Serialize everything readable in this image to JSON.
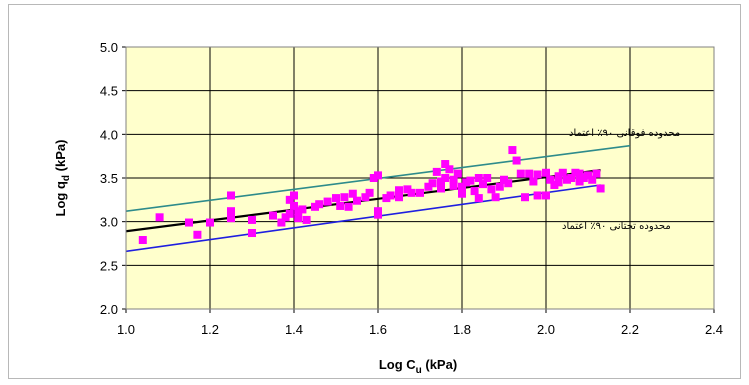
{
  "colors": {
    "plot_background": "#ffffcc",
    "grid": "#000000",
    "points": "#ff00ff",
    "mean_line": "#000000",
    "upper_line": "#2e8b8b",
    "lower_line": "#1f1fe0"
  },
  "chart_data": {
    "type": "scatter",
    "xlabel_main": "Log C",
    "xlabel_sub": "u",
    "xlabel_unit": " (kPa)",
    "ylabel_main": "Log q",
    "ylabel_sub": "d",
    "ylabel_unit": " (kPa)",
    "xlim": [
      1.0,
      2.4
    ],
    "ylim": [
      2.0,
      5.0
    ],
    "x_ticks": [
      "1.0",
      "1.2",
      "1.4",
      "1.6",
      "1.8",
      "2.0",
      "2.2",
      "2.4"
    ],
    "y_ticks": [
      "2.0",
      "2.5",
      "3.0",
      "3.5",
      "4.0",
      "4.5",
      "5.0"
    ],
    "grid": true,
    "annotations": {
      "upper": "محدوده فوقانی ۹۰٪ اعتماد",
      "lower": "محدوده تحتانی ۹۰٪ اعتماد"
    },
    "lines": [
      {
        "role": "upper",
        "x": [
          1.0,
          2.2
        ],
        "y": [
          3.12,
          3.87
        ]
      },
      {
        "role": "mean",
        "x": [
          1.0,
          2.13
        ],
        "y": [
          2.89,
          3.59
        ]
      },
      {
        "role": "lower",
        "x": [
          1.0,
          2.13
        ],
        "y": [
          2.66,
          3.42
        ]
      }
    ],
    "points": [
      [
        1.04,
        2.79
      ],
      [
        1.08,
        3.05
      ],
      [
        1.15,
        2.99
      ],
      [
        1.17,
        2.85
      ],
      [
        1.2,
        2.99
      ],
      [
        1.25,
        3.04
      ],
      [
        1.25,
        3.12
      ],
      [
        1.25,
        3.3
      ],
      [
        1.3,
        2.87
      ],
      [
        1.3,
        3.02
      ],
      [
        1.35,
        3.07
      ],
      [
        1.37,
        2.99
      ],
      [
        1.38,
        3.05
      ],
      [
        1.39,
        3.25
      ],
      [
        1.39,
        3.09
      ],
      [
        1.4,
        3.3
      ],
      [
        1.4,
        3.18
      ],
      [
        1.41,
        3.12
      ],
      [
        1.41,
        3.04
      ],
      [
        1.42,
        3.14
      ],
      [
        1.43,
        3.02
      ],
      [
        1.45,
        3.17
      ],
      [
        1.46,
        3.2
      ],
      [
        1.48,
        3.23
      ],
      [
        1.5,
        3.27
      ],
      [
        1.51,
        3.18
      ],
      [
        1.52,
        3.28
      ],
      [
        1.53,
        3.17
      ],
      [
        1.54,
        3.32
      ],
      [
        1.55,
        3.24
      ],
      [
        1.57,
        3.28
      ],
      [
        1.58,
        3.33
      ],
      [
        1.59,
        3.5
      ],
      [
        1.6,
        3.53
      ],
      [
        1.6,
        3.12
      ],
      [
        1.6,
        3.08
      ],
      [
        1.62,
        3.27
      ],
      [
        1.63,
        3.3
      ],
      [
        1.65,
        3.36
      ],
      [
        1.65,
        3.28
      ],
      [
        1.67,
        3.37
      ],
      [
        1.68,
        3.33
      ],
      [
        1.7,
        3.33
      ],
      [
        1.72,
        3.4
      ],
      [
        1.73,
        3.44
      ],
      [
        1.74,
        3.57
      ],
      [
        1.75,
        3.38
      ],
      [
        1.75,
        3.46
      ],
      [
        1.76,
        3.5
      ],
      [
        1.76,
        3.66
      ],
      [
        1.77,
        3.6
      ],
      [
        1.78,
        3.48
      ],
      [
        1.78,
        3.41
      ],
      [
        1.79,
        3.55
      ],
      [
        1.8,
        3.4
      ],
      [
        1.8,
        3.32
      ],
      [
        1.81,
        3.45
      ],
      [
        1.82,
        3.47
      ],
      [
        1.83,
        3.35
      ],
      [
        1.84,
        3.5
      ],
      [
        1.84,
        3.27
      ],
      [
        1.85,
        3.43
      ],
      [
        1.86,
        3.5
      ],
      [
        1.87,
        3.37
      ],
      [
        1.88,
        3.28
      ],
      [
        1.89,
        3.4
      ],
      [
        1.9,
        3.48
      ],
      [
        1.91,
        3.44
      ],
      [
        1.92,
        3.82
      ],
      [
        1.93,
        3.7
      ],
      [
        1.94,
        3.55
      ],
      [
        1.95,
        3.28
      ],
      [
        1.96,
        3.55
      ],
      [
        1.97,
        3.46
      ],
      [
        1.98,
        3.54
      ],
      [
        1.98,
        3.3
      ],
      [
        2.0,
        3.56
      ],
      [
        2.0,
        3.3
      ],
      [
        2.01,
        3.48
      ],
      [
        2.02,
        3.42
      ],
      [
        2.03,
        3.52
      ],
      [
        2.03,
        3.45
      ],
      [
        2.04,
        3.56
      ],
      [
        2.05,
        3.48
      ],
      [
        2.06,
        3.5
      ],
      [
        2.07,
        3.56
      ],
      [
        2.08,
        3.46
      ],
      [
        2.08,
        3.55
      ],
      [
        2.09,
        3.5
      ],
      [
        2.1,
        3.53
      ],
      [
        2.11,
        3.48
      ],
      [
        2.12,
        3.55
      ],
      [
        2.13,
        3.38
      ]
    ]
  }
}
